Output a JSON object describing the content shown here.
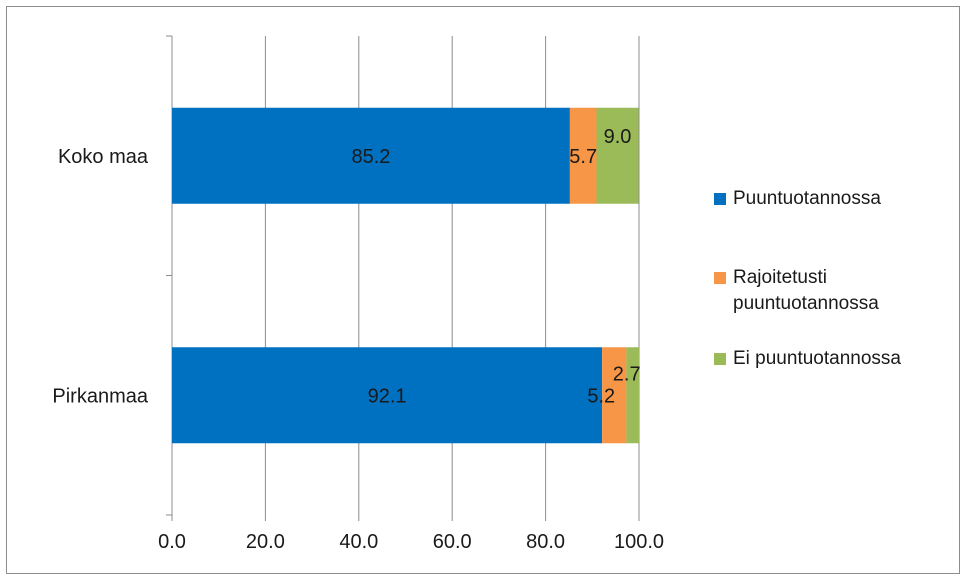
{
  "chart_data": {
    "type": "bar",
    "orientation": "horizontal",
    "stacked": true,
    "categories": [
      "Koko maa",
      "Pirkanmaa"
    ],
    "series": [
      {
        "name": "Puuntuotannossa",
        "values": [
          85.2,
          92.1
        ],
        "labels": [
          "85.2",
          "92.1"
        ],
        "color": "#0070c0"
      },
      {
        "name": "Rajoitetusti puuntuotannossa",
        "values": [
          5.7,
          5.2
        ],
        "labels": [
          "5.7",
          "5.2"
        ],
        "color": "#f79646"
      },
      {
        "name": "Ei puuntuotannossa",
        "values": [
          9.0,
          2.7
        ],
        "labels": [
          "9.0",
          "2.7"
        ],
        "color": "#9bbb59"
      }
    ],
    "xlim": [
      0,
      100
    ],
    "xticks": [
      0,
      20,
      40,
      60,
      80,
      100
    ],
    "xtick_labels": [
      "0.0",
      "20.0",
      "40.0",
      "60.0",
      "80.0",
      "100.0"
    ],
    "grid": "vertical",
    "legend_position": "right",
    "title": "",
    "xlabel": "",
    "ylabel": ""
  }
}
